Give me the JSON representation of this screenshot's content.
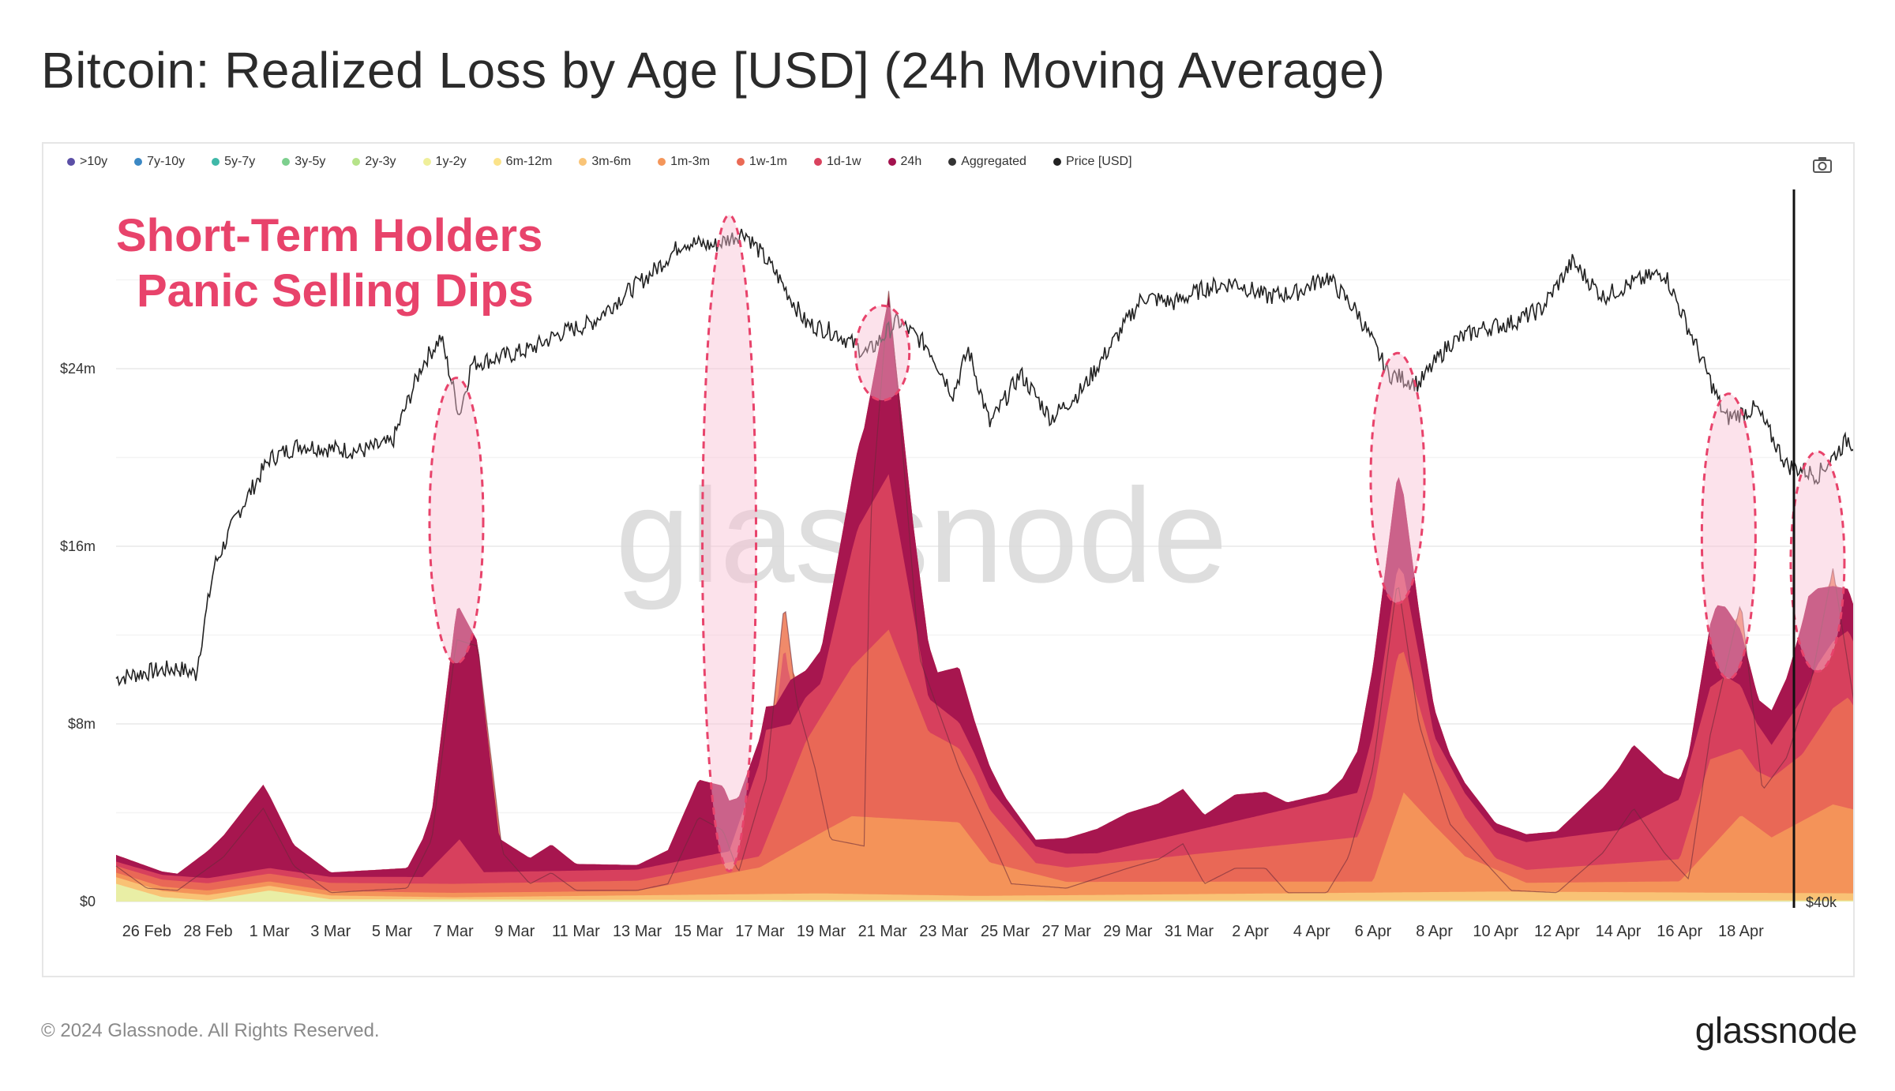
{
  "title": "Bitcoin: Realized Loss by Age [USD] (24h Moving Average)",
  "footer": {
    "copyright": "© 2024 Glassnode. All Rights Reserved.",
    "logo": "glassnode"
  },
  "watermark": "glassnode",
  "annotation": {
    "line1": "Short-Term Holders",
    "line2": "Panic Selling Dips",
    "color": "#e8436b"
  },
  "icons": {
    "camera": "camera-icon"
  },
  "chart_data": {
    "type": "area",
    "stacked": true,
    "legend_position": "top-left",
    "grid": true,
    "legend": [
      {
        "name": ">10y",
        "color": "#5b4fa6"
      },
      {
        "name": "7y-10y",
        "color": "#3b88c4"
      },
      {
        "name": "5y-7y",
        "color": "#3fb8a8"
      },
      {
        "name": "3y-5y",
        "color": "#7dcf8e"
      },
      {
        "name": "2y-3y",
        "color": "#b6e38a"
      },
      {
        "name": "1y-2y",
        "color": "#efef9a"
      },
      {
        "name": "6m-12m",
        "color": "#fbe38a"
      },
      {
        "name": "3m-6m",
        "color": "#f9c477"
      },
      {
        "name": "1m-3m",
        "color": "#f4965a"
      },
      {
        "name": "1w-1m",
        "color": "#ea6a55"
      },
      {
        "name": "1d-1w",
        "color": "#d9425e"
      },
      {
        "name": "24h",
        "color": "#a3124e"
      },
      {
        "name": "Aggregated",
        "color": "#333333"
      },
      {
        "name": "Price [USD]",
        "color": "#222222"
      }
    ],
    "x_ticks": [
      "26 Feb",
      "28 Feb",
      "1 Mar",
      "3 Mar",
      "5 Mar",
      "7 Mar",
      "9 Mar",
      "11 Mar",
      "13 Mar",
      "15 Mar",
      "17 Mar",
      "19 Mar",
      "21 Mar",
      "23 Mar",
      "25 Mar",
      "27 Mar",
      "29 Mar",
      "31 Mar",
      "2 Apr",
      "4 Apr",
      "6 Apr",
      "8 Apr",
      "10 Apr",
      "12 Apr",
      "14 Apr",
      "16 Apr",
      "18 Apr"
    ],
    "x_range_days": [
      -1.0,
      53.6
    ],
    "y_left": {
      "ticks": [
        "$0",
        "$8m",
        "$16m",
        "$24m"
      ],
      "values": [
        0,
        8,
        16,
        24
      ],
      "range": [
        0,
        32
      ],
      "unit": "USD millions"
    },
    "y_right": {
      "ticks": [
        "$40k"
      ],
      "range": [
        40000,
        75000
      ]
    },
    "price_series": {
      "name": "Price [USD]",
      "color": "#222222",
      "points": [
        [
          -1,
          51000
        ],
        [
          0,
          51300
        ],
        [
          1,
          51500
        ],
        [
          1.6,
          51200
        ],
        [
          2.2,
          56500
        ],
        [
          3,
          59200
        ],
        [
          4,
          61800
        ],
        [
          5,
          62500
        ],
        [
          6,
          62300
        ],
        [
          7,
          62200
        ],
        [
          8,
          62600
        ],
        [
          9,
          66500
        ],
        [
          9.6,
          67800
        ],
        [
          10.2,
          64000
        ],
        [
          10.6,
          66500
        ],
        [
          11.5,
          66800
        ],
        [
          12.5,
          67200
        ],
        [
          13.5,
          68000
        ],
        [
          14.5,
          68500
        ],
        [
          15.5,
          69800
        ],
        [
          16.5,
          71000
        ],
        [
          17.5,
          72500
        ],
        [
          18.5,
          72300
        ],
        [
          19.5,
          73000
        ],
        [
          20.5,
          71000
        ],
        [
          21.5,
          68500
        ],
        [
          22.5,
          68000
        ],
        [
          23.5,
          67000
        ],
        [
          24.5,
          68600
        ],
        [
          25.5,
          67300
        ],
        [
          26.3,
          65000
        ],
        [
          26.8,
          67200
        ],
        [
          27.5,
          63500
        ],
        [
          28.5,
          66000
        ],
        [
          29.5,
          63800
        ],
        [
          30.5,
          65200
        ],
        [
          31.5,
          67500
        ],
        [
          32.5,
          69800
        ],
        [
          33.5,
          69500
        ],
        [
          34.5,
          70200
        ],
        [
          35.5,
          70500
        ],
        [
          36.5,
          69800
        ],
        [
          37.5,
          70000
        ],
        [
          38.5,
          70800
        ],
        [
          39.5,
          69000
        ],
        [
          40.5,
          66000
        ],
        [
          41.5,
          65500
        ],
        [
          42.5,
          67500
        ],
        [
          43.5,
          68200
        ],
        [
          44.5,
          68500
        ],
        [
          45.5,
          69200
        ],
        [
          46.5,
          71500
        ],
        [
          47.5,
          69800
        ],
        [
          48.5,
          70500
        ],
        [
          49.5,
          71000
        ],
        [
          50.5,
          67500
        ],
        [
          51.5,
          63800
        ],
        [
          52.5,
          64300
        ],
        [
          53.5,
          61500
        ],
        [
          54.5,
          61000
        ],
        [
          55.5,
          62800
        ],
        [
          56.5,
          61000
        ],
        [
          57.5,
          61200
        ],
        [
          58.3,
          60800
        ],
        [
          58.6,
          59800
        ]
      ]
    },
    "stack_series": [
      {
        "name": "1y-2y",
        "color": "#e8f0a8",
        "points": [
          [
            -1,
            0.8
          ],
          [
            0.5,
            0.2
          ],
          [
            2,
            0.05
          ],
          [
            4,
            0.5
          ],
          [
            6,
            0.1
          ],
          [
            30,
            0.05
          ],
          [
            58.6,
            0.05
          ]
        ]
      },
      {
        "name": "3m-6m",
        "color": "#f9c477",
        "points": [
          [
            -1,
            0.3
          ],
          [
            10,
            0.1
          ],
          [
            22,
            0.3
          ],
          [
            27,
            0.2
          ],
          [
            44,
            0.4
          ],
          [
            58.6,
            0.3
          ]
        ]
      },
      {
        "name": "1m-3m",
        "color": "#f4965a",
        "points": [
          [
            -1,
            0.2
          ],
          [
            16,
            0.2
          ],
          [
            20,
            1.2
          ],
          [
            23,
            3.5
          ],
          [
            26.5,
            3.3
          ],
          [
            27.5,
            1.5
          ],
          [
            30,
            0.6
          ],
          [
            40,
            0.5
          ],
          [
            41,
            4.5
          ],
          [
            42,
            3.0
          ],
          [
            43,
            1.6
          ],
          [
            45,
            0.4
          ],
          [
            50,
            0.5
          ],
          [
            52,
            3.5
          ],
          [
            53,
            2.5
          ],
          [
            55,
            4.0
          ],
          [
            56.5,
            3.5
          ],
          [
            57.5,
            6.5
          ],
          [
            58.6,
            4.5
          ]
        ]
      },
      {
        "name": "1w-1m",
        "color": "#ea6a55",
        "points": [
          [
            -1,
            0.3
          ],
          [
            20,
            0.5
          ],
          [
            21.5,
            4.5
          ],
          [
            24.2,
            8.5
          ],
          [
            25.5,
            4.0
          ],
          [
            27,
            3.0
          ],
          [
            29,
            0.5
          ],
          [
            39.5,
            2.0
          ],
          [
            40.8,
            7.0
          ],
          [
            42,
            3.0
          ],
          [
            44,
            0.5
          ],
          [
            50,
            1.0
          ],
          [
            51,
            4.0
          ],
          [
            52.5,
            2.5
          ],
          [
            54,
            3.0
          ],
          [
            55.5,
            5.0
          ],
          [
            56.5,
            3.0
          ],
          [
            57.5,
            5.0
          ],
          [
            58.6,
            3.5
          ]
        ]
      },
      {
        "name": "1d-1w",
        "color": "#d9425e",
        "points": [
          [
            -1,
            0.2
          ],
          [
            9,
            0.3
          ],
          [
            10.2,
            2.0
          ],
          [
            11,
            0.5
          ],
          [
            19,
            0.5
          ],
          [
            20.2,
            5.0
          ],
          [
            21,
            2.5
          ],
          [
            22,
            1.5
          ],
          [
            23.2,
            6.0
          ],
          [
            24.2,
            7.0
          ],
          [
            25.5,
            1.5
          ],
          [
            27,
            1.0
          ],
          [
            31,
            0.5
          ],
          [
            39.5,
            2.0
          ],
          [
            40.8,
            4.0
          ],
          [
            42,
            1.0
          ],
          [
            48,
            1.5
          ],
          [
            50.5,
            3.0
          ],
          [
            51.5,
            3.5
          ],
          [
            53,
            1.5
          ],
          [
            54.5,
            3.0
          ],
          [
            55.5,
            3.0
          ],
          [
            57,
            2.0
          ],
          [
            58.6,
            1.5
          ]
        ]
      },
      {
        "name": "24h",
        "color": "#a3124e",
        "points": [
          [
            -1,
            0.3
          ],
          [
            1,
            0.1
          ],
          [
            2.5,
            1.8
          ],
          [
            3.8,
            3.8
          ],
          [
            4.8,
            1.2
          ],
          [
            6,
            0.2
          ],
          [
            8.5,
            0.4
          ],
          [
            9.3,
            2.5
          ],
          [
            10.1,
            10.5
          ],
          [
            10.8,
            10.0
          ],
          [
            11.5,
            1.5
          ],
          [
            12.5,
            0.6
          ],
          [
            13.2,
            1.2
          ],
          [
            14,
            0.3
          ],
          [
            16,
            0.2
          ],
          [
            17,
            0.6
          ],
          [
            18,
            3.5
          ],
          [
            18.8,
            3.0
          ],
          [
            19.3,
            1.2
          ],
          [
            20.5,
            1.0
          ],
          [
            21,
            2.0
          ],
          [
            21.5,
            1.2
          ],
          [
            22,
            1.5
          ],
          [
            22.8,
            2.8
          ],
          [
            23.4,
            4.0
          ],
          [
            24.2,
            8.0
          ],
          [
            25,
            4.0
          ],
          [
            25.8,
            1.5
          ],
          [
            26.5,
            2.5
          ],
          [
            27,
            1.5
          ],
          [
            28,
            0.5
          ],
          [
            29,
            0.3
          ],
          [
            32,
            1.5
          ],
          [
            33,
            1.6
          ],
          [
            33.8,
            2.0
          ],
          [
            34.5,
            0.6
          ],
          [
            35.5,
            1.2
          ],
          [
            36.5,
            1.0
          ],
          [
            37.2,
            0.3
          ],
          [
            38.5,
            0.3
          ],
          [
            39,
            0.8
          ],
          [
            40,
            3.0
          ],
          [
            40.8,
            4.2
          ],
          [
            41.5,
            2.0
          ],
          [
            42.5,
            0.5
          ],
          [
            46,
            0.3
          ],
          [
            47.5,
            2.0
          ],
          [
            48.5,
            3.5
          ],
          [
            49.5,
            1.5
          ],
          [
            50.3,
            0.5
          ],
          [
            51.2,
            3.5
          ],
          [
            52,
            2.5
          ],
          [
            52.6,
            1.2
          ],
          [
            53.5,
            2.0
          ],
          [
            54.2,
            4.0
          ],
          [
            55,
            2.5
          ],
          [
            55.8,
            1.5
          ],
          [
            56.5,
            3.5
          ],
          [
            57.2,
            3.2
          ],
          [
            58,
            1.8
          ],
          [
            58.6,
            1.8
          ]
        ]
      }
    ],
    "aggregated_series": {
      "name": "Aggregated",
      "points": [
        [
          -1,
          1.6
        ],
        [
          0,
          0.6
        ],
        [
          1,
          0.5
        ],
        [
          2.5,
          2.0
        ],
        [
          3.8,
          4.2
        ],
        [
          4.8,
          1.6
        ],
        [
          6,
          0.4
        ],
        [
          8.5,
          0.6
        ],
        [
          9.3,
          2.8
        ],
        [
          10.1,
          11.8
        ],
        [
          10.8,
          11.5
        ],
        [
          11.6,
          2.2
        ],
        [
          12.5,
          0.8
        ],
        [
          13.2,
          1.3
        ],
        [
          14,
          0.5
        ],
        [
          16,
          0.5
        ],
        [
          17,
          0.8
        ],
        [
          18,
          3.8
        ],
        [
          18.8,
          3.2
        ],
        [
          19.3,
          1.3
        ],
        [
          20.2,
          5.5
        ],
        [
          20.8,
          13.5
        ],
        [
          21.2,
          9.0
        ],
        [
          21.8,
          6.0
        ],
        [
          22.3,
          2.8
        ],
        [
          23.4,
          2.5
        ],
        [
          23.6,
          17.0
        ],
        [
          24.2,
          27.5
        ],
        [
          24.5,
          23.0
        ],
        [
          25.2,
          11.0
        ],
        [
          26.5,
          6.0
        ],
        [
          27.5,
          3.0
        ],
        [
          28.2,
          0.8
        ],
        [
          30,
          0.6
        ],
        [
          32,
          1.5
        ],
        [
          33,
          1.9
        ],
        [
          33.8,
          2.6
        ],
        [
          34.5,
          0.8
        ],
        [
          35.5,
          1.5
        ],
        [
          36.5,
          1.5
        ],
        [
          37.2,
          0.4
        ],
        [
          38.5,
          0.4
        ],
        [
          39.2,
          2.0
        ],
        [
          40,
          6.0
        ],
        [
          40.8,
          14.5
        ],
        [
          41.5,
          8.0
        ],
        [
          42.5,
          3.5
        ],
        [
          43.5,
          2.0
        ],
        [
          44.5,
          0.5
        ],
        [
          46,
          0.4
        ],
        [
          47.5,
          2.2
        ],
        [
          48.5,
          4.2
        ],
        [
          49.5,
          2.2
        ],
        [
          50.3,
          1.0
        ],
        [
          51.0,
          7.5
        ],
        [
          52.0,
          13.5
        ],
        [
          52.7,
          5.0
        ],
        [
          53.5,
          6.5
        ],
        [
          54.3,
          10.0
        ],
        [
          55.0,
          15.0
        ],
        [
          55.8,
          8.0
        ],
        [
          56.5,
          14.5
        ],
        [
          57.0,
          18.5
        ],
        [
          57.5,
          7.0
        ],
        [
          58.0,
          15.5
        ],
        [
          58.6,
          4.0
        ]
      ]
    },
    "highlight_ellipses_days": [
      10.1,
      19.0,
      24.0,
      40.8,
      51.6,
      54.5,
      57.3
    ]
  }
}
